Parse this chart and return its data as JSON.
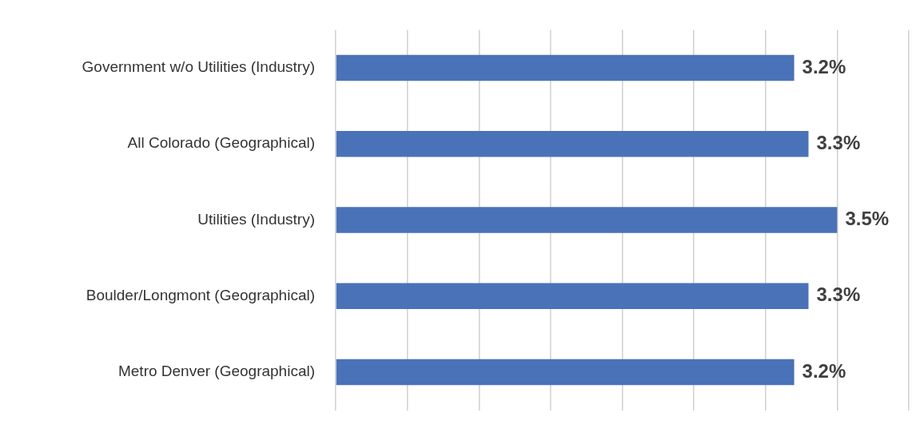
{
  "chart_data": {
    "type": "bar",
    "orientation": "horizontal",
    "categories": [
      "Government w/o Utilities (Industry)",
      "All Colorado (Geographical)",
      "Utilities (Industry)",
      "Boulder/Longmont (Geographical)",
      "Metro Denver (Geographical)"
    ],
    "values": [
      3.2,
      3.3,
      3.5,
      3.3,
      3.2
    ],
    "value_labels": [
      "3.2%",
      "3.3%",
      "3.5%",
      "3.3%",
      "3.2%"
    ],
    "color": "#4a72b8",
    "xlim": [
      0,
      4
    ],
    "xticks": [
      {
        "value": 0,
        "label": null
      },
      {
        "value": 0.5,
        "label": null
      },
      {
        "value": 1,
        "label": null
      },
      {
        "value": 1.5,
        "label": null
      },
      {
        "value": 2,
        "label": null
      },
      {
        "value": 2.5,
        "label": null
      },
      {
        "value": 3,
        "label": null
      },
      {
        "value": 3.5,
        "label": null
      },
      {
        "value": 4,
        "label": null
      }
    ],
    "grid": "x",
    "tick_labels": "y",
    "legend": false
  }
}
